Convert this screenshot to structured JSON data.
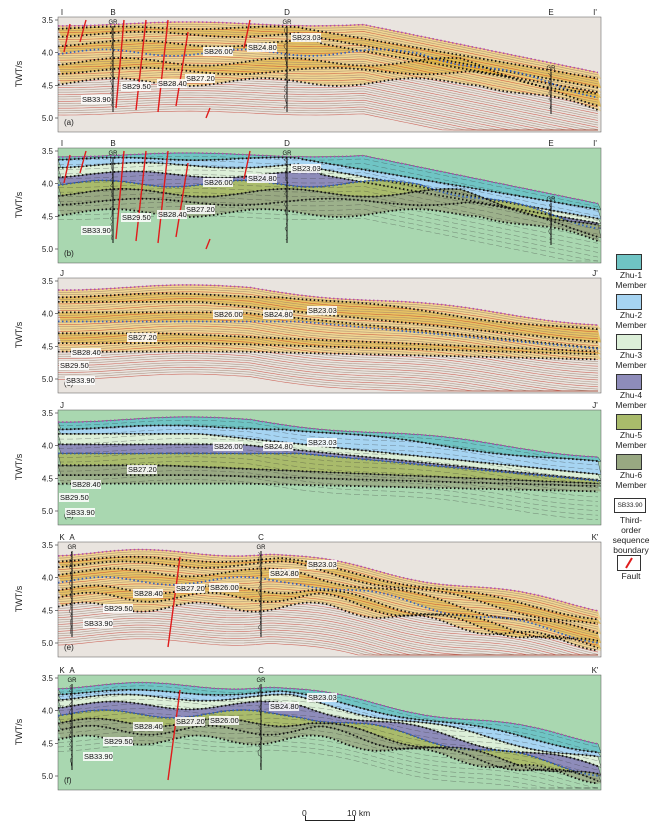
{
  "panels": [
    {
      "id": "a",
      "kind": "seismic",
      "start": "I",
      "end": "I'",
      "wells": [
        {
          "name": "B",
          "x": 113
        },
        {
          "name": "D",
          "x": 287
        },
        {
          "name": "E",
          "x": 551
        }
      ],
      "boundaries": [
        "SB23.03",
        "SB24.80",
        "SB26.00",
        "SB27.20",
        "SB28.40",
        "SB29.50",
        "SB33.90"
      ]
    },
    {
      "id": "b",
      "kind": "interpreted",
      "start": "I",
      "end": "I'",
      "wells": [
        {
          "name": "B",
          "x": 113
        },
        {
          "name": "D",
          "x": 287
        },
        {
          "name": "E",
          "x": 551
        }
      ],
      "boundaries": [
        "SB23.03",
        "SB24.80",
        "SB26.00",
        "SB27.20",
        "SB28.40",
        "SB29.50",
        "SB33.90"
      ]
    },
    {
      "id": "c",
      "kind": "seismic",
      "start": "J",
      "end": "J'",
      "wells": [],
      "boundaries": [
        "SB23.03",
        "SB24.80",
        "SB26.00",
        "SB27.20",
        "SB28.40",
        "SB29.50",
        "SB33.90"
      ]
    },
    {
      "id": "d",
      "kind": "interpreted",
      "start": "J",
      "end": "J'",
      "wells": [],
      "boundaries": [
        "SB23.03",
        "SB24.80",
        "SB26.00",
        "SB27.20",
        "SB28.40",
        "SB29.50",
        "SB33.90"
      ]
    },
    {
      "id": "e",
      "kind": "seismic",
      "start": "K",
      "end": "K'",
      "wells": [
        {
          "name": "A",
          "x": 72
        },
        {
          "name": "C",
          "x": 261
        }
      ],
      "boundaries": [
        "SB23.03",
        "SB24.80",
        "SB26.00",
        "SB27.20",
        "SB28.40",
        "SB29.50",
        "SB33.90"
      ]
    },
    {
      "id": "f",
      "kind": "interpreted",
      "start": "K",
      "end": "K'",
      "wells": [
        {
          "name": "A",
          "x": 72
        },
        {
          "name": "C",
          "x": 261
        }
      ],
      "boundaries": [
        "SB23.03",
        "SB24.80",
        "SB26.00",
        "SB27.20",
        "SB28.40",
        "SB29.50",
        "SB33.90"
      ]
    }
  ],
  "axis": {
    "label": "TWT/s",
    "ticks": [
      "3.5",
      "4.0",
      "4.5",
      "5.0"
    ]
  },
  "gr_label": "GR",
  "legend": [
    {
      "label": "Zhu-1 Member",
      "color": "#6fc4c4"
    },
    {
      "label": "Zhu-2 Member",
      "color": "#a6d4f2"
    },
    {
      "label": "Zhu-3 Member",
      "color": "#dcefd8"
    },
    {
      "label": "Zhu-4 Member",
      "color": "#8e8cba"
    },
    {
      "label": "Zhu-5 Member",
      "color": "#a9bb6b"
    },
    {
      "label": "Zhu-6 Member",
      "color": "#98a882"
    }
  ],
  "legend_boundary": {
    "sample": "SB33.90",
    "label": "Third-order sequence boundary"
  },
  "legend_fault": {
    "label": "Fault",
    "color": "#e01b1b"
  },
  "scale_bar": {
    "left": "0",
    "right": "10 km"
  },
  "colors": {
    "overburden": "#a9d7b0",
    "seismic_hot": "#e7b93a",
    "seismic_red": "#c0392b",
    "boundary_dot": "#111111",
    "top_dot": "#b04bb0",
    "blue_dot": "#2f5fbf"
  }
}
